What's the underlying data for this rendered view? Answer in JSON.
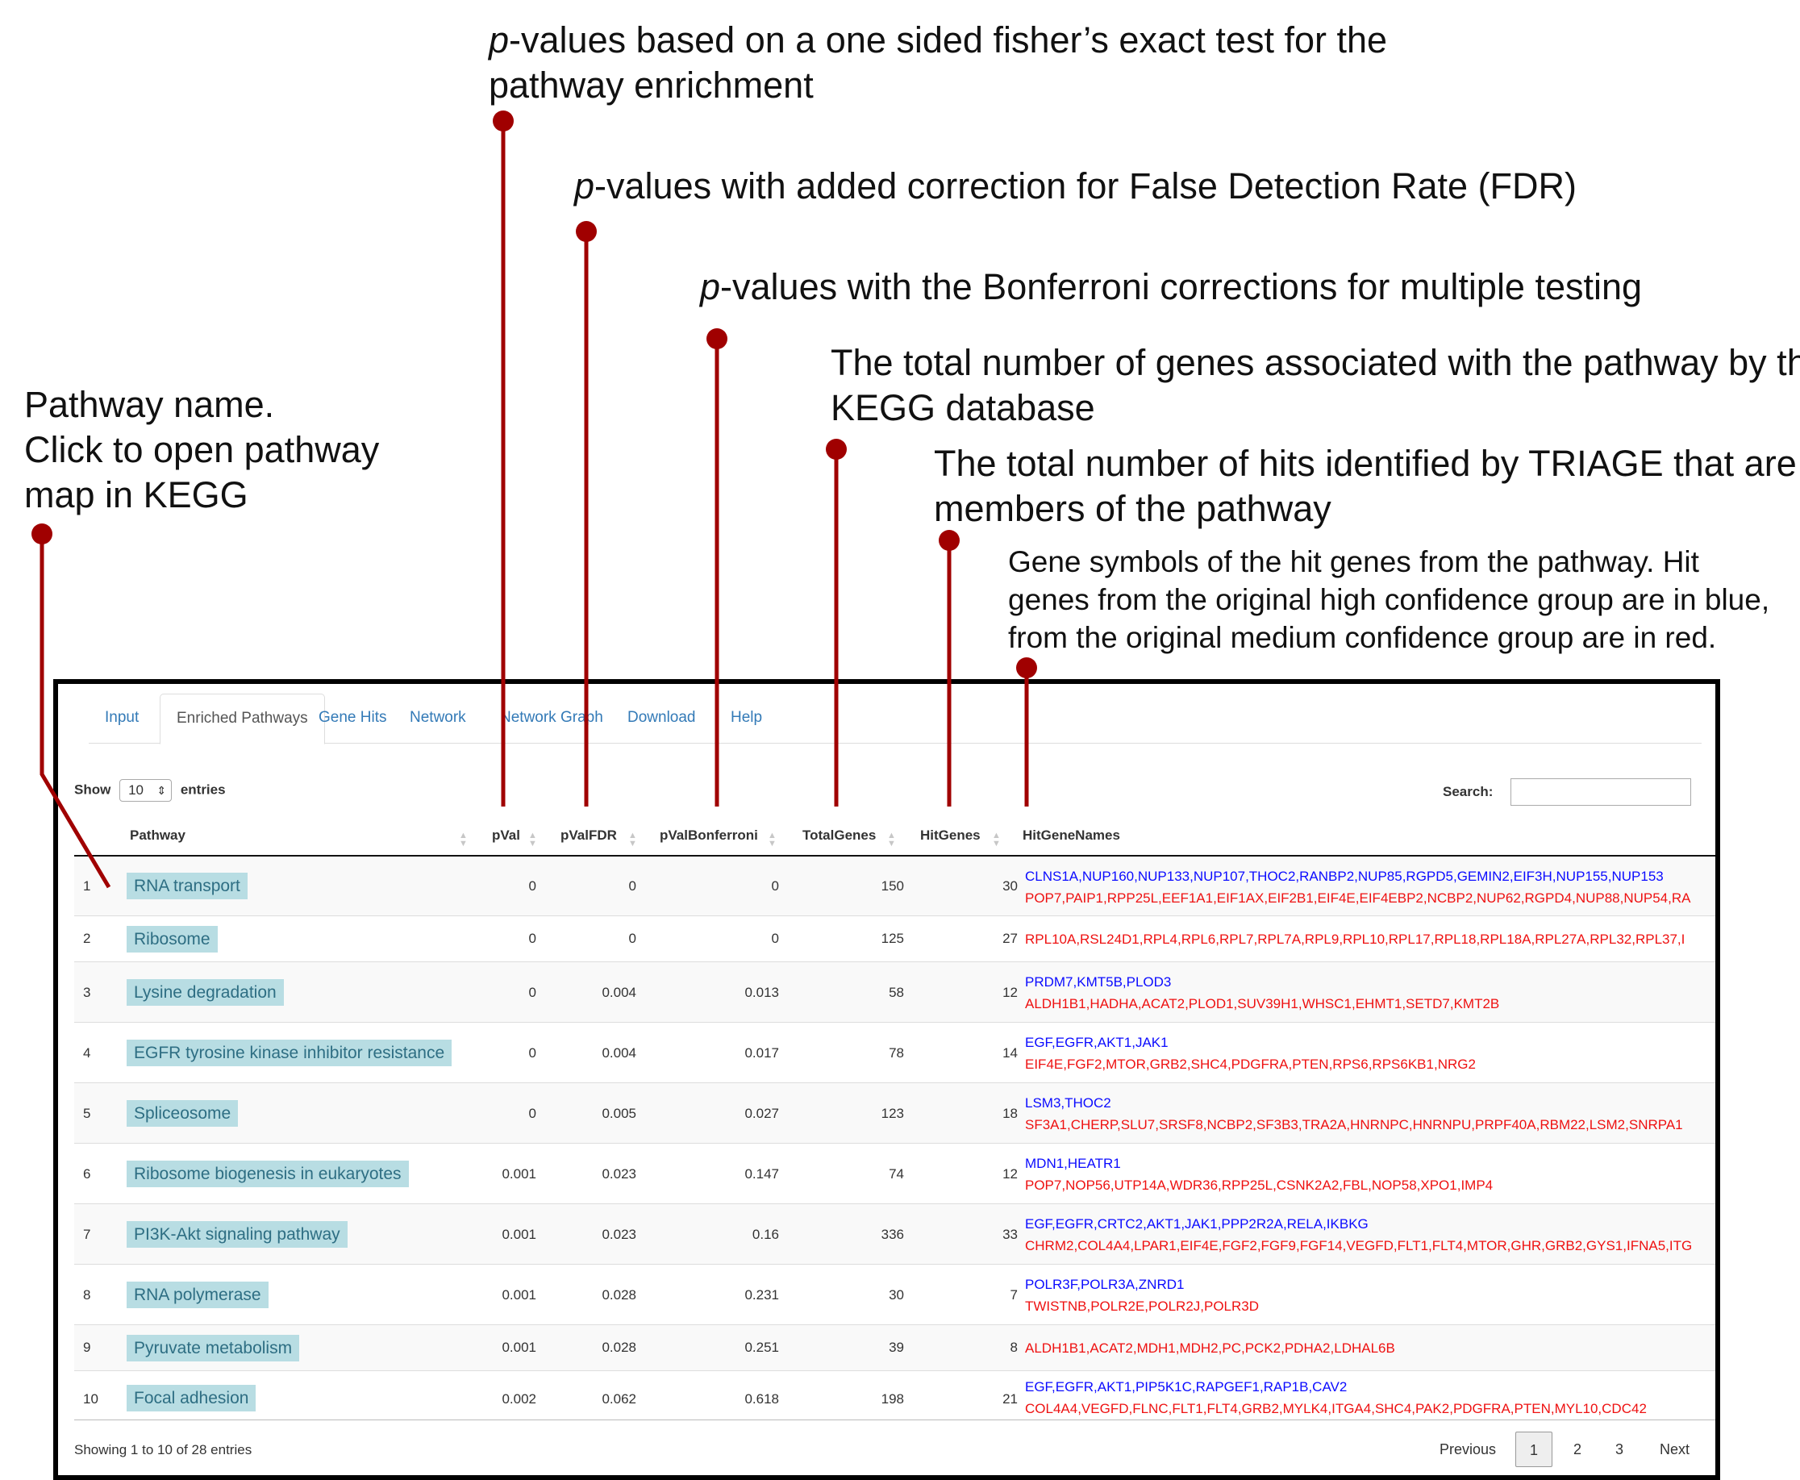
{
  "annotations": {
    "pval_prefix": "p",
    "pval_rest1": "-values based on a one sided fisher’s exact test for the",
    "pval_rest2": "pathway enrichment",
    "fdr_prefix": "p",
    "fdr_rest": "-values with added correction for False Detection Rate (FDR)",
    "bonf_prefix": "p",
    "bonf_rest": "-values with the Bonferroni corrections for multiple testing",
    "total_line1": "The total number of genes associated with the pathway by the",
    "total_line2": "KEGG database",
    "hits_line1": "The total number of hits identified by TRIAGE that are",
    "hits_line2": "members of the pathway",
    "genes_line1": "Gene  symbols  of  the  hit  genes  from  the  pathway.  Hit",
    "genes_line2": "genes  from  the  original  high  confidence  group  are  in blue,",
    "genes_line3": "from  the  original  medium  confidence  group  are  in red.",
    "pathway_line1": "Pathway name.",
    "pathway_line2": "Click  to open pathway",
    "pathway_line3": "map in KEGG",
    "leader_color": "#a00000"
  },
  "tabs": [
    "Input",
    "Enriched Pathways",
    "Gene Hits",
    "Network",
    "Network Graph",
    "Download",
    "Help"
  ],
  "controls": {
    "show_label": "Show",
    "entries_value": "10",
    "entries_label": "entries",
    "search_label": "Search:",
    "search_value": ""
  },
  "headers": [
    "Pathway",
    "pVal",
    "pValFDR",
    "pValBonferroni",
    "TotalGenes",
    "HitGenes",
    "HitGeneNames"
  ],
  "rows": [
    {
      "index": "1",
      "pathway": "RNA transport",
      "pval": "0",
      "fdr": "0",
      "bonf": "0",
      "total": "150",
      "hits": "30",
      "blue": "CLNS1A,NUP160,NUP133,NUP107,THOC2,RANBP2,NUP85,RGPD5,GEMIN2,EIF3H,NUP155,NUP153",
      "red": "POP7,PAIP1,RPP25L,EEF1A1,EIF1AX,EIF2B1,EIF4E,EIF4EBP2,NCBP2,NUP62,RGPD4,NUP88,NUP54,RA"
    },
    {
      "index": "2",
      "pathway": "Ribosome",
      "pval": "0",
      "fdr": "0",
      "bonf": "0",
      "total": "125",
      "hits": "27",
      "blue": "",
      "red": "RPL10A,RSL24D1,RPL4,RPL6,RPL7,RPL7A,RPL9,RPL10,RPL17,RPL18,RPL18A,RPL27A,RPL32,RPL37,I"
    },
    {
      "index": "3",
      "pathway": "Lysine degradation",
      "pval": "0",
      "fdr": "0.004",
      "bonf": "0.013",
      "total": "58",
      "hits": "12",
      "blue": "PRDM7,KMT5B,PLOD3",
      "red": "ALDH1B1,HADHA,ACAT2,PLOD1,SUV39H1,WHSC1,EHMT1,SETD7,KMT2B"
    },
    {
      "index": "4",
      "pathway": "EGFR tyrosine kinase inhibitor resistance",
      "pval": "0",
      "fdr": "0.004",
      "bonf": "0.017",
      "total": "78",
      "hits": "14",
      "blue": "EGF,EGFR,AKT1,JAK1",
      "red": "EIF4E,FGF2,MTOR,GRB2,SHC4,PDGFRA,PTEN,RPS6,RPS6KB1,NRG2"
    },
    {
      "index": "5",
      "pathway": "Spliceosome",
      "pval": "0",
      "fdr": "0.005",
      "bonf": "0.027",
      "total": "123",
      "hits": "18",
      "blue": "LSM3,THOC2",
      "red": "SF3A1,CHERP,SLU7,SRSF8,NCBP2,SF3B3,TRA2A,HNRNPC,HNRNPU,PRPF40A,RBM22,LSM2,SNRPA1"
    },
    {
      "index": "6",
      "pathway": "Ribosome biogenesis in eukaryotes",
      "pval": "0.001",
      "fdr": "0.023",
      "bonf": "0.147",
      "total": "74",
      "hits": "12",
      "blue": "MDN1,HEATR1",
      "red": "POP7,NOP56,UTP14A,WDR36,RPP25L,CSNK2A2,FBL,NOP58,XPO1,IMP4"
    },
    {
      "index": "7",
      "pathway": "PI3K-Akt signaling pathway",
      "pval": "0.001",
      "fdr": "0.023",
      "bonf": "0.16",
      "total": "336",
      "hits": "33",
      "blue": "EGF,EGFR,CRTC2,AKT1,JAK1,PPP2R2A,RELA,IKBKG",
      "red": "CHRM2,COL4A4,LPAR1,EIF4E,FGF2,FGF9,FGF14,VEGFD,FLT1,FLT4,MTOR,GHR,GRB2,GYS1,IFNA5,ITG"
    },
    {
      "index": "8",
      "pathway": "RNA polymerase",
      "pval": "0.001",
      "fdr": "0.028",
      "bonf": "0.231",
      "total": "30",
      "hits": "7",
      "blue": "POLR3F,POLR3A,ZNRD1",
      "red": "TWISTNB,POLR2E,POLR2J,POLR3D"
    },
    {
      "index": "9",
      "pathway": "Pyruvate metabolism",
      "pval": "0.001",
      "fdr": "0.028",
      "bonf": "0.251",
      "total": "39",
      "hits": "8",
      "blue": "",
      "red": "ALDH1B1,ACAT2,MDH1,MDH2,PC,PCK2,PDHA2,LDHAL6B"
    },
    {
      "index": "10",
      "pathway": "Focal adhesion",
      "pval": "0.002",
      "fdr": "0.062",
      "bonf": "0.618",
      "total": "198",
      "hits": "21",
      "blue": "EGF,EGFR,AKT1,PIP5K1C,RAPGEF1,RAP1B,CAV2",
      "red": "COL4A4,VEGFD,FLNC,FLT1,FLT4,GRB2,MYLK4,ITGA4,SHC4,PAK2,PDGFRA,PTEN,MYL10,CDC42"
    }
  ],
  "footer": {
    "info": "Showing 1 to 10 of 28 entries",
    "previous": "Previous",
    "pages": [
      "1",
      "2",
      "3"
    ],
    "next": "Next"
  },
  "colors": {
    "high_confidence": "#0b0bff",
    "medium_confidence": "#ee1111",
    "pathway_badge": "#b8dde3"
  }
}
